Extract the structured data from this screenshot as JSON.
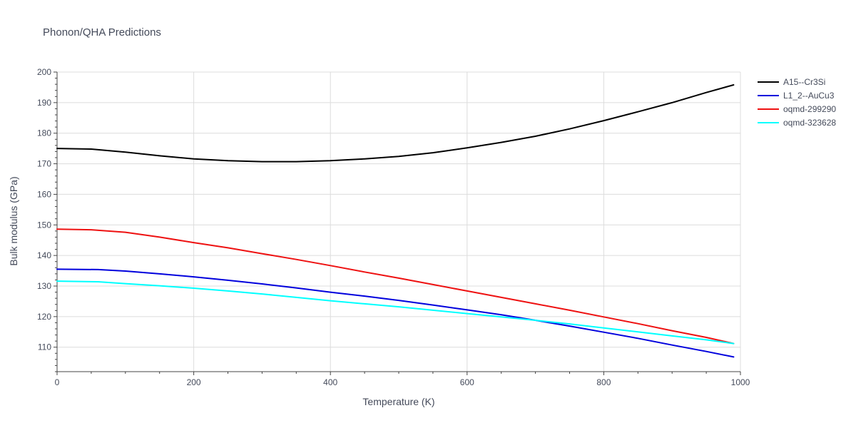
{
  "chart_data": {
    "type": "line",
    "title": "Phonon/QHA Predictions",
    "xlabel": "Temperature (K)",
    "ylabel": "Bulk modulus (GPa)",
    "xlim": [
      0,
      1000
    ],
    "ylim": [
      102,
      200
    ],
    "x_ticks": [
      0,
      200,
      400,
      600,
      800,
      1000
    ],
    "y_ticks": [
      110,
      120,
      130,
      140,
      150,
      160,
      170,
      180,
      190,
      200
    ],
    "grid": true,
    "legend_position": "top-right outside",
    "series": [
      {
        "name": "A15--Cr3Si",
        "color": "#000000",
        "x": [
          0,
          50,
          100,
          150,
          200,
          250,
          300,
          350,
          400,
          450,
          500,
          550,
          600,
          650,
          700,
          750,
          800,
          850,
          900,
          950,
          990
        ],
        "y": [
          175.0,
          174.8,
          173.8,
          172.6,
          171.6,
          171.0,
          170.7,
          170.7,
          171.0,
          171.6,
          172.4,
          173.6,
          175.2,
          177.0,
          179.0,
          181.4,
          184.1,
          187.0,
          190.0,
          193.3,
          195.8
        ]
      },
      {
        "name": "L1_2--AuCu3",
        "color": "#0000dd",
        "x": [
          0,
          60,
          100,
          150,
          200,
          250,
          300,
          350,
          400,
          450,
          500,
          550,
          600,
          650,
          700,
          750,
          800,
          850,
          900,
          950,
          990
        ],
        "y": [
          135.5,
          135.4,
          134.9,
          134.0,
          133.0,
          131.9,
          130.7,
          129.4,
          128.0,
          126.7,
          125.3,
          123.8,
          122.2,
          120.6,
          118.8,
          116.9,
          114.9,
          112.9,
          110.7,
          108.6,
          106.8
        ]
      },
      {
        "name": "oqmd-299290",
        "color": "#ee1111",
        "x": [
          0,
          50,
          100,
          150,
          200,
          250,
          300,
          350,
          400,
          450,
          500,
          550,
          600,
          650,
          700,
          750,
          800,
          850,
          900,
          950,
          990
        ],
        "y": [
          148.6,
          148.4,
          147.6,
          146.0,
          144.2,
          142.5,
          140.6,
          138.7,
          136.7,
          134.6,
          132.6,
          130.5,
          128.4,
          126.3,
          124.2,
          122.1,
          119.9,
          117.7,
          115.4,
          113.2,
          111.2
        ]
      },
      {
        "name": "oqmd-323628",
        "color": "#00ffff",
        "x": [
          0,
          60,
          100,
          150,
          200,
          250,
          300,
          350,
          400,
          450,
          500,
          550,
          600,
          650,
          700,
          750,
          800,
          850,
          900,
          950,
          990
        ],
        "y": [
          131.6,
          131.4,
          130.8,
          130.1,
          129.3,
          128.4,
          127.4,
          126.3,
          125.2,
          124.2,
          123.2,
          122.1,
          121.0,
          119.9,
          118.8,
          117.6,
          116.3,
          115.0,
          113.7,
          112.4,
          111.2
        ]
      }
    ]
  }
}
